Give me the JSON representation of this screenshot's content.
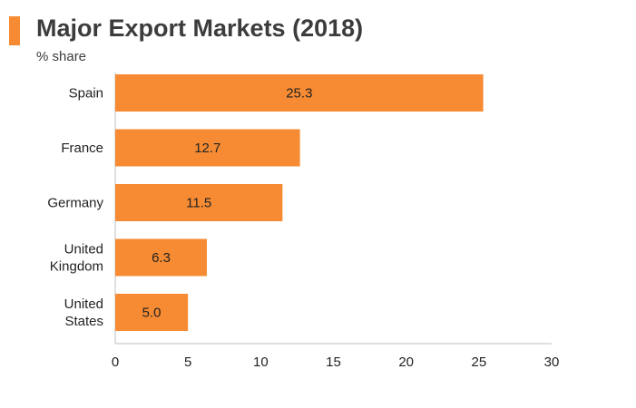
{
  "header": {
    "title": "Major Export Markets (2018)",
    "subtitle": "% share"
  },
  "colors": {
    "bar": "#f68b33",
    "accent": "#f68b33",
    "text": "#222222",
    "axis": "#bfbfbf"
  },
  "chart_data": {
    "type": "bar",
    "orientation": "horizontal",
    "title": "Major Export Markets (2018)",
    "subtitle": "% share",
    "categories": [
      "Spain",
      "France",
      "Germany",
      "United Kingdom",
      "United States"
    ],
    "category_lines": [
      [
        "Spain"
      ],
      [
        "France"
      ],
      [
        "Germany"
      ],
      [
        "United",
        "Kingdom"
      ],
      [
        "United",
        "States"
      ]
    ],
    "values": [
      25.3,
      12.7,
      11.5,
      6.3,
      5.0
    ],
    "value_labels": [
      "25.3",
      "12.7",
      "11.5",
      "6.3",
      "5.0"
    ],
    "xlim": [
      0,
      30
    ],
    "xticks": [
      0,
      5,
      10,
      15,
      20,
      25,
      30
    ],
    "xlabel": "",
    "ylabel": "",
    "grid": false,
    "legend": "none"
  }
}
